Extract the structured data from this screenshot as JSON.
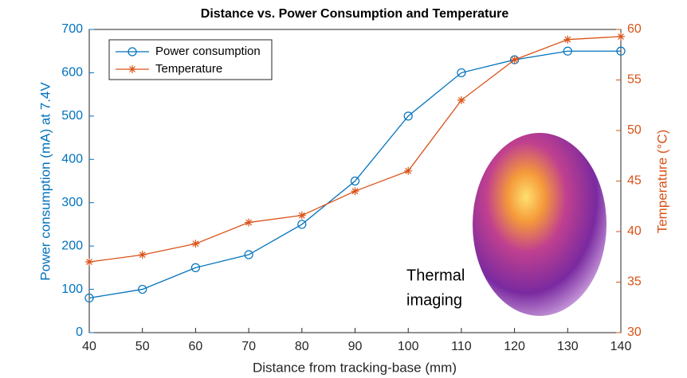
{
  "chart_data": {
    "type": "line",
    "title": "Distance vs. Power Consumption and Temperature",
    "xlabel": "Distance from tracking-base (mm)",
    "ylabel": "Power consumption (mA) at 7.4V",
    "y2label": "Temperature (°C)",
    "annotation_lines": [
      "Thermal",
      "imaging"
    ],
    "x": [
      40,
      50,
      60,
      70,
      80,
      90,
      100,
      110,
      120,
      130,
      140
    ],
    "series": [
      {
        "name": "Power consumption",
        "color": "#0072BD",
        "marker": "circle",
        "values": [
          80,
          100,
          150,
          180,
          250,
          350,
          500,
          600,
          630,
          650,
          650
        ]
      },
      {
        "name": "Temperature",
        "color": "#D95319",
        "marker": "asterisk",
        "axis": "y2",
        "values": [
          37,
          37.7,
          38.8,
          40.9,
          41.6,
          44,
          46,
          53,
          57,
          59,
          59.3
        ]
      }
    ],
    "xlim": [
      40,
      140
    ],
    "xticks": [
      40,
      50,
      60,
      70,
      80,
      90,
      100,
      110,
      120,
      130,
      140
    ],
    "ylim": [
      0,
      700
    ],
    "yticks": [
      0,
      100,
      200,
      300,
      400,
      500,
      600,
      700
    ],
    "y2lim": [
      30,
      60
    ],
    "y2ticks": [
      30,
      35,
      40,
      45,
      50,
      55,
      60
    ],
    "legend": "upper-left",
    "grid": false
  }
}
